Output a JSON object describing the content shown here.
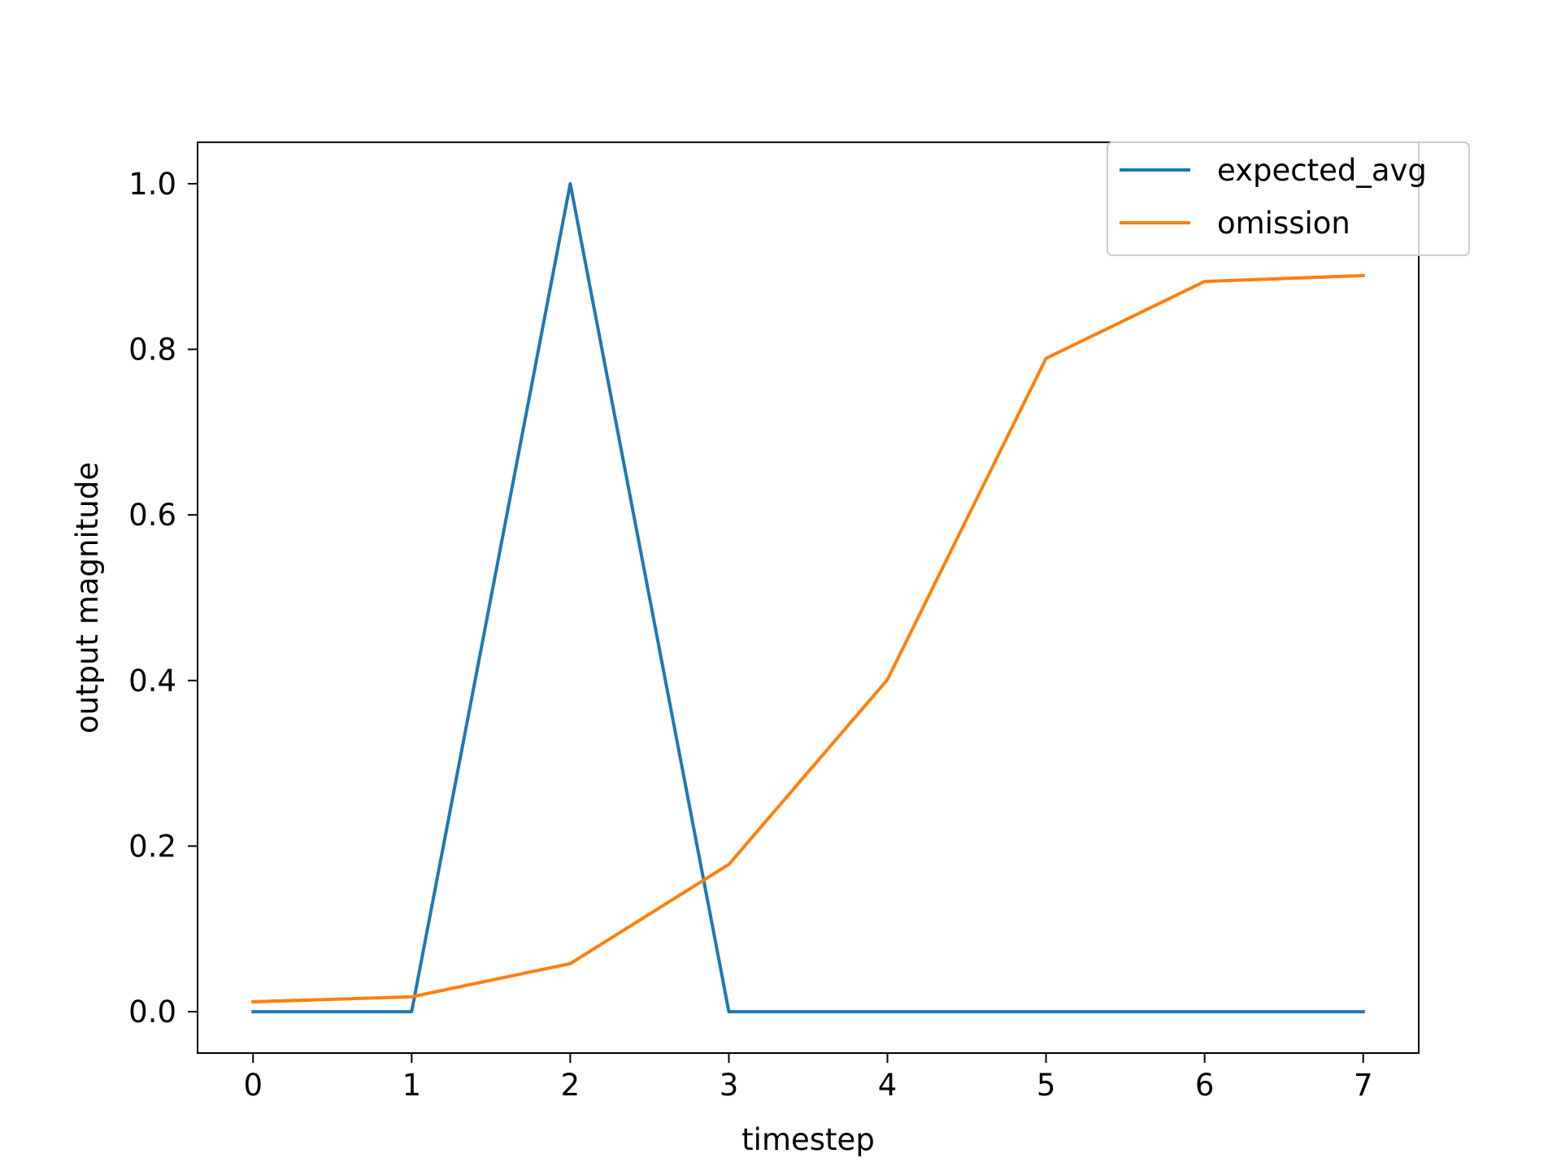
{
  "chart_data": {
    "type": "line",
    "x": [
      0,
      1,
      2,
      3,
      4,
      5,
      6,
      7
    ],
    "series": [
      {
        "name": "expected_avg",
        "color": "#1f77b4",
        "values": [
          0,
          0,
          1.0,
          0,
          0,
          0,
          0,
          0
        ]
      },
      {
        "name": "omission",
        "color": "#ff7f0e",
        "values": [
          0.012,
          0.018,
          0.058,
          0.178,
          0.401,
          0.789,
          0.882,
          0.889
        ]
      }
    ],
    "xlabel": "timestep",
    "ylabel": "output magnitude",
    "xlim": [
      -0.35,
      7.35
    ],
    "ylim": [
      -0.05,
      1.05
    ],
    "xticks": [
      0,
      1,
      2,
      3,
      4,
      5,
      6,
      7
    ],
    "xtick_labels": [
      "0",
      "1",
      "2",
      "3",
      "4",
      "5",
      "6",
      "7"
    ],
    "yticks": [
      0.0,
      0.2,
      0.4,
      0.6,
      0.8,
      1.0
    ],
    "ytick_labels": [
      "0.0",
      "0.2",
      "0.4",
      "0.6",
      "0.8",
      "1.0"
    ],
    "grid": false,
    "legend_position": "upper right"
  }
}
